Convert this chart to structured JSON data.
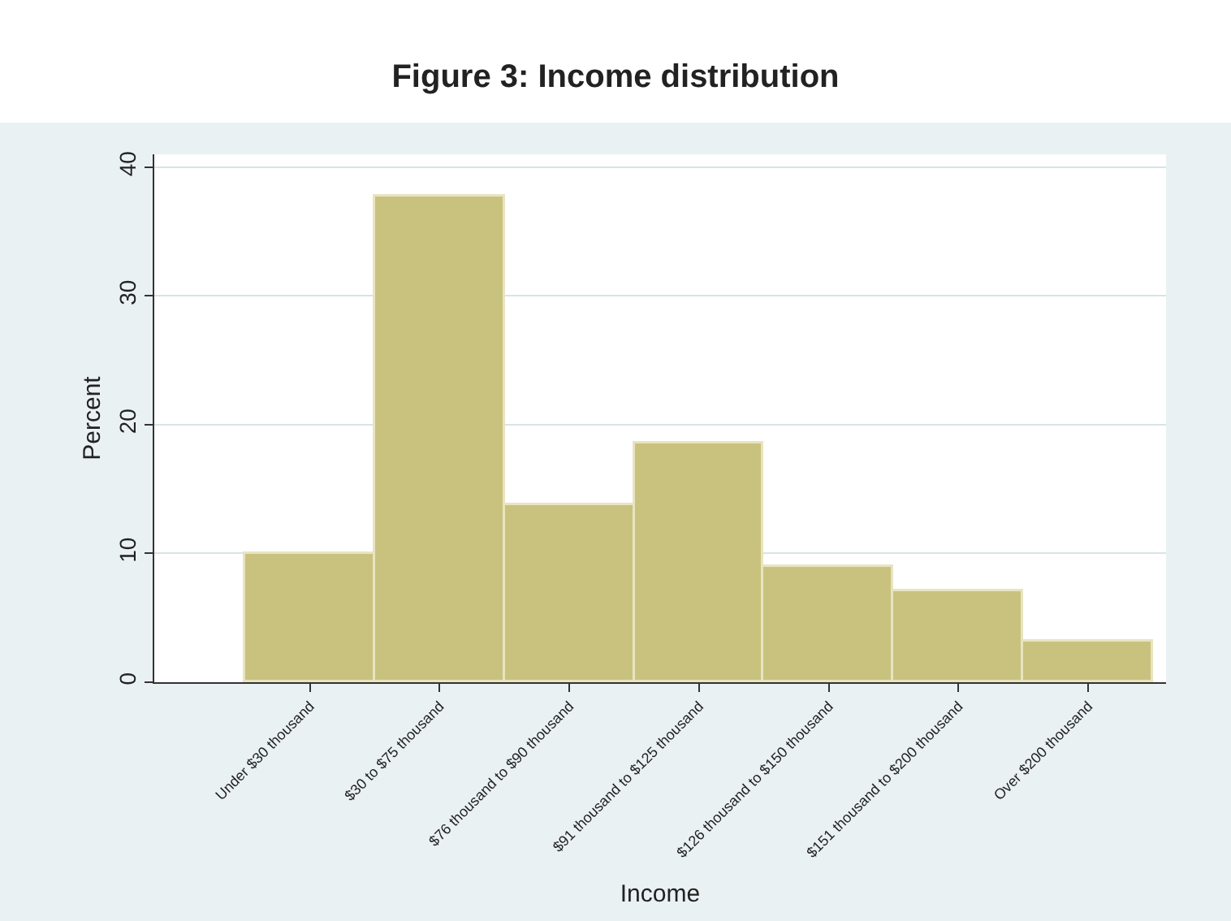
{
  "chart_data": {
    "type": "bar",
    "title": "Figure 3: Income distribution",
    "xlabel": "Income",
    "ylabel": "Percent",
    "categories": [
      "Under $30 thousand",
      "$30 to $75 thousand",
      "$76 thousand to $90 thousand",
      "$91 thousand to $125 thousand",
      "$126 thousand to $150 thousand",
      "$151 thousand to $200 thousand",
      "Over $200 thousand"
    ],
    "values": [
      10.0,
      37.7,
      13.8,
      18.5,
      8.9,
      7.1,
      3.2
    ],
    "color": "#c9c27f",
    "ylim": [
      0,
      41
    ],
    "yticks": [
      0,
      10,
      20,
      30,
      40
    ],
    "grid": "y"
  }
}
